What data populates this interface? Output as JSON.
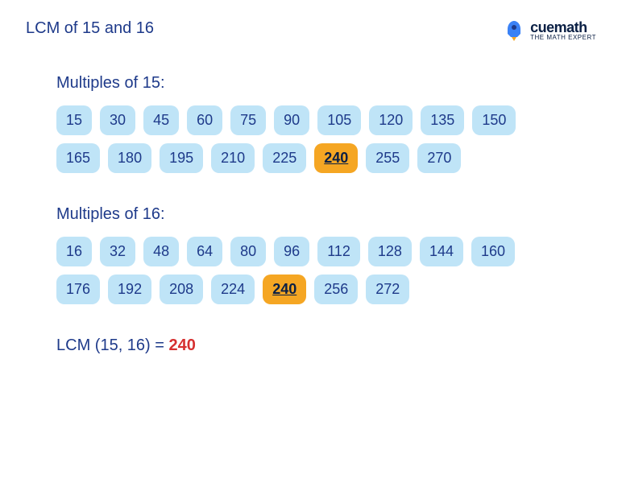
{
  "title": "LCM of 15 and 16",
  "logo": {
    "brand": "cuemath",
    "tagline": "THE MATH EXPERT"
  },
  "sections": [
    {
      "title": "Multiples of 15:",
      "chips": [
        {
          "v": "15",
          "h": false
        },
        {
          "v": "30",
          "h": false
        },
        {
          "v": "45",
          "h": false
        },
        {
          "v": "60",
          "h": false
        },
        {
          "v": "75",
          "h": false
        },
        {
          "v": "90",
          "h": false
        },
        {
          "v": "105",
          "h": false
        },
        {
          "v": "120",
          "h": false
        },
        {
          "v": "135",
          "h": false
        },
        {
          "v": "150",
          "h": false
        },
        {
          "v": "165",
          "h": false
        },
        {
          "v": "180",
          "h": false
        },
        {
          "v": "195",
          "h": false
        },
        {
          "v": "210",
          "h": false
        },
        {
          "v": "225",
          "h": false
        },
        {
          "v": "240",
          "h": true
        },
        {
          "v": "255",
          "h": false
        },
        {
          "v": "270",
          "h": false
        }
      ]
    },
    {
      "title": "Multiples of 16:",
      "chips": [
        {
          "v": "16",
          "h": false
        },
        {
          "v": "32",
          "h": false
        },
        {
          "v": "48",
          "h": false
        },
        {
          "v": "64",
          "h": false
        },
        {
          "v": "80",
          "h": false
        },
        {
          "v": "96",
          "h": false
        },
        {
          "v": "112",
          "h": false
        },
        {
          "v": "128",
          "h": false
        },
        {
          "v": "144",
          "h": false
        },
        {
          "v": "160",
          "h": false
        },
        {
          "v": "176",
          "h": false
        },
        {
          "v": "192",
          "h": false
        },
        {
          "v": "208",
          "h": false
        },
        {
          "v": "224",
          "h": false
        },
        {
          "v": "240",
          "h": true
        },
        {
          "v": "256",
          "h": false
        },
        {
          "v": "272",
          "h": false
        }
      ]
    }
  ],
  "result": {
    "label": "LCM (15, 16) = ",
    "answer": "240"
  },
  "colors": {
    "text_primary": "#1e3a8a",
    "chip_bg": "#bfe4f7",
    "chip_highlight_bg": "#f5a623",
    "answer": "#d63030",
    "logo_rocket": "#3b82f6",
    "logo_flame": "#f5a623"
  }
}
